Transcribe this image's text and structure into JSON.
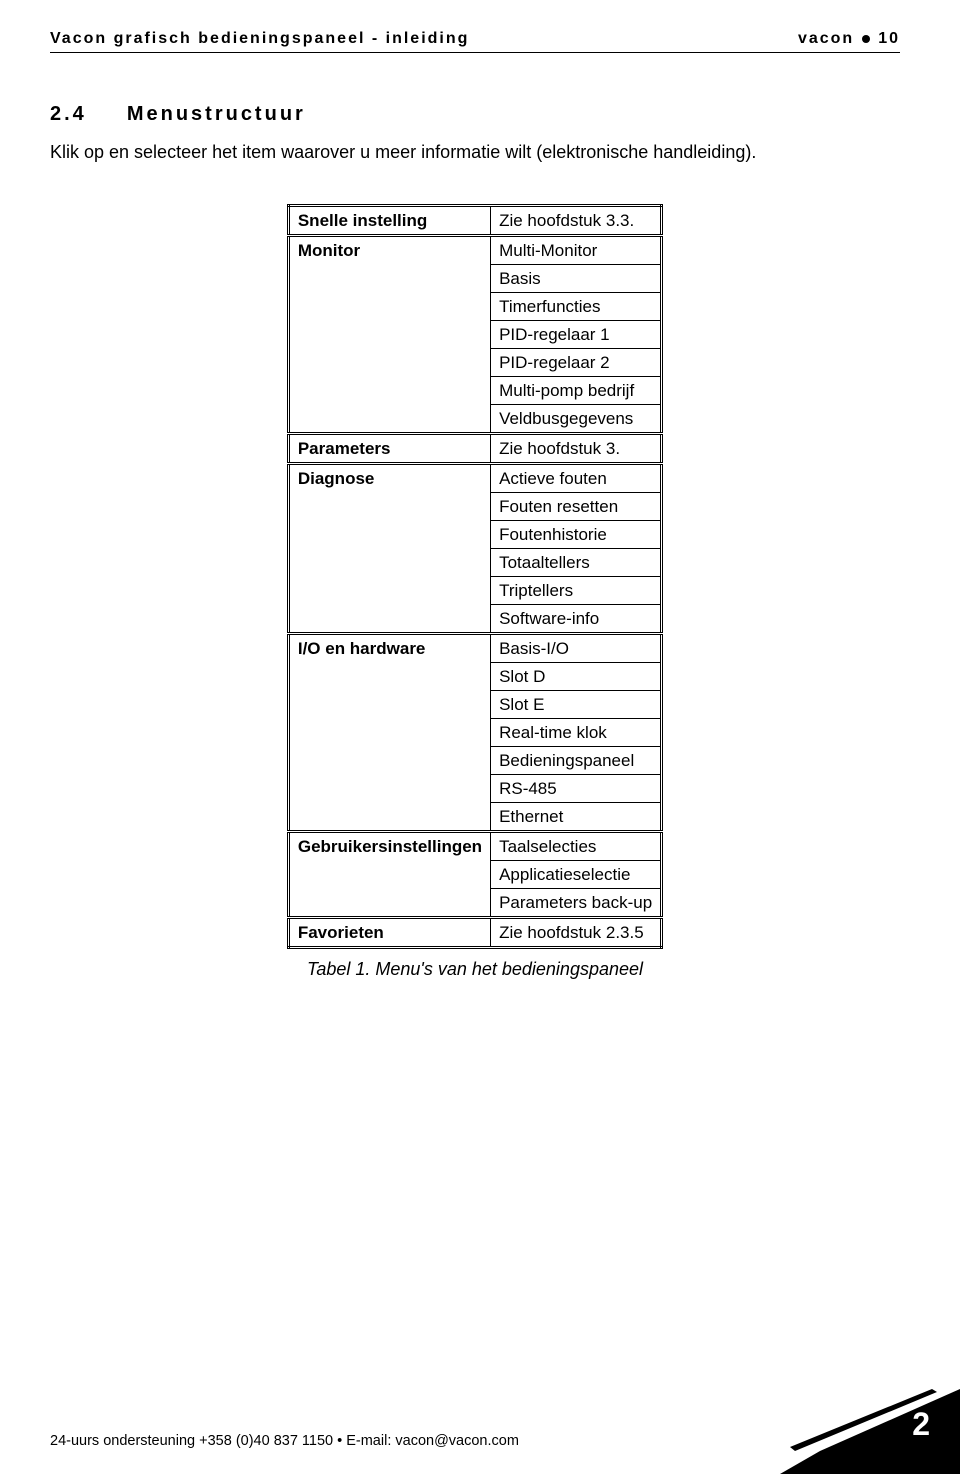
{
  "header": {
    "left": "Vacon grafisch bedieningspaneel - inleiding",
    "right_brand": "vacon",
    "right_num": "10"
  },
  "section": {
    "num": "2.4",
    "title": "Menustructuur",
    "intro": "Klik op en selecteer het item waarover u meer informatie wilt (elektronische handleiding)."
  },
  "table": {
    "caption": "Tabel 1. Menu's van het bedieningspaneel",
    "groups": [
      {
        "label": "Snelle instelling",
        "items": [
          "Zie hoofdstuk 3.3."
        ]
      },
      {
        "label": "Monitor",
        "items": [
          "Multi-Monitor",
          "Basis",
          "Timerfuncties",
          "PID-regelaar 1",
          "PID-regelaar 2",
          "Multi-pomp bedrijf",
          "Veldbusgegevens"
        ]
      },
      {
        "label": "Parameters",
        "items": [
          "Zie hoofdstuk 3."
        ]
      },
      {
        "label": "Diagnose",
        "items": [
          "Actieve fouten",
          "Fouten resetten",
          "Foutenhistorie",
          "Totaaltellers",
          "Triptellers",
          "Software-info"
        ]
      },
      {
        "label": "I/O en hardware",
        "items": [
          "Basis-I/O",
          "Slot D",
          "Slot E",
          "Real-time klok",
          "Bedieningspaneel",
          "RS-485",
          "Ethernet"
        ]
      },
      {
        "label": "Gebruikersinstellingen",
        "items": [
          "Taalselecties",
          "Applicatieselectie",
          "Parameters back-up"
        ]
      },
      {
        "label": "Favorieten",
        "items": [
          "Zie hoofdstuk 2.3.5"
        ]
      }
    ]
  },
  "footer": {
    "text": "24-uurs ondersteuning +358 (0)40 837 1150 • E-mail: vacon@vacon.com",
    "page_num": "2"
  }
}
